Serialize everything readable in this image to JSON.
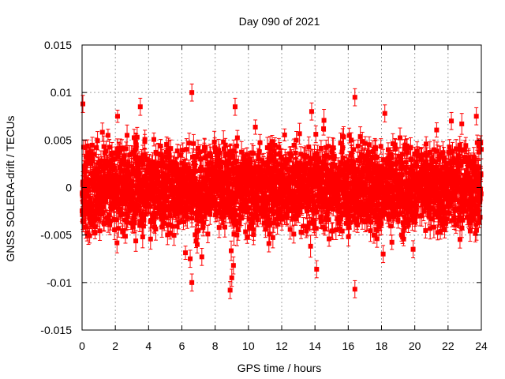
{
  "chart_data": {
    "type": "scatter",
    "title": "Day 090 of 2021",
    "xlabel": "GPS time / hours",
    "ylabel": "GNSS SOLERA-drift / TECUs",
    "xlim": [
      0,
      24
    ],
    "ylim": [
      -0.015,
      0.015
    ],
    "x_ticks": [
      0,
      2,
      4,
      6,
      8,
      10,
      12,
      14,
      16,
      18,
      20,
      22,
      24
    ],
    "x_tick_labels": [
      "0",
      "2",
      "4",
      "6",
      "8",
      "10",
      "12",
      "14",
      "16",
      "18",
      "20",
      "22",
      "24"
    ],
    "y_ticks": [
      -0.015,
      -0.01,
      -0.005,
      0,
      0.005,
      0.01,
      0.015
    ],
    "y_tick_labels": [
      "-0.015",
      "-0.01",
      "-0.005",
      "0",
      "0.005",
      "0.01",
      "0.015"
    ],
    "grid": true,
    "marker": "square",
    "error_bars": true,
    "series": [
      {
        "color": "#ff0000",
        "sampling_interval_hours": 0.0083,
        "typical_error": 0.0009,
        "spread_std": 0.0022,
        "notable_points": [
          {
            "x": 0.05,
            "y": 0.0088
          },
          {
            "x": 0.05,
            "y": -0.0035
          },
          {
            "x": 3.5,
            "y": 0.0085
          },
          {
            "x": 6.6,
            "y": 0.01
          },
          {
            "x": 6.5,
            "y": -0.0075
          },
          {
            "x": 6.6,
            "y": -0.01
          },
          {
            "x": 7.2,
            "y": -0.0073
          },
          {
            "x": 8.9,
            "y": -0.0108
          },
          {
            "x": 9.0,
            "y": -0.0095
          },
          {
            "x": 9.1,
            "y": -0.0082
          },
          {
            "x": 9.2,
            "y": 0.0085
          },
          {
            "x": 13.8,
            "y": 0.008
          },
          {
            "x": 14.1,
            "y": -0.0086
          },
          {
            "x": 16.4,
            "y": 0.0095
          },
          {
            "x": 16.4,
            "y": -0.0107
          },
          {
            "x": 18.2,
            "y": 0.0078
          },
          {
            "x": 18.1,
            "y": -0.007
          },
          {
            "x": 19.9,
            "y": -0.0065
          },
          {
            "x": 22.2,
            "y": 0.007
          },
          {
            "x": 23.7,
            "y": 0.0075
          }
        ]
      }
    ]
  }
}
